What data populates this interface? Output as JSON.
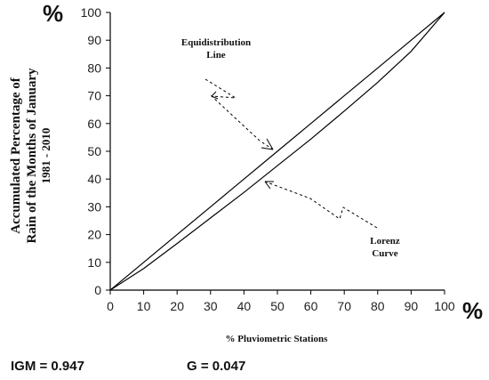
{
  "chart_data": {
    "type": "line",
    "x": [
      0,
      10,
      20,
      30,
      40,
      50,
      60,
      70,
      80,
      90,
      100
    ],
    "series": [
      {
        "name": "Equidistribution Line",
        "values": [
          0,
          10,
          20,
          30,
          40,
          50,
          60,
          70,
          80,
          90,
          100
        ]
      },
      {
        "name": "Lorenz Curve",
        "values": [
          0,
          7.8,
          16.8,
          26.0,
          35.2,
          44.8,
          54.4,
          64.5,
          74.8,
          86.0,
          100
        ]
      }
    ],
    "xlim": [
      0,
      100
    ],
    "ylim": [
      0,
      100
    ],
    "x_ticks": [
      "0",
      "10",
      "20",
      "30",
      "40",
      "50",
      "60",
      "70",
      "80",
      "90",
      "100"
    ],
    "y_ticks": [
      "0",
      "10",
      "20",
      "30",
      "40",
      "50",
      "60",
      "70",
      "80",
      "90",
      "100"
    ],
    "xlabel": "% Pluviometric Stations",
    "ylabel_lines": [
      "Accumulated Percentage of",
      "Rain of the Months of January",
      "1981 - 2010"
    ],
    "y_unit": "%",
    "x_unit": "%",
    "annotations": {
      "equidistribution_line1": "Equidistribution",
      "equidistribution_line2": "Line",
      "lorenz_line1": "Lorenz",
      "lorenz_line2": "Curve"
    },
    "stats": {
      "igm": "IGM = 0.947",
      "g": "G = 0.047"
    },
    "grid": false,
    "legend": "none",
    "line_color": "#000000"
  }
}
